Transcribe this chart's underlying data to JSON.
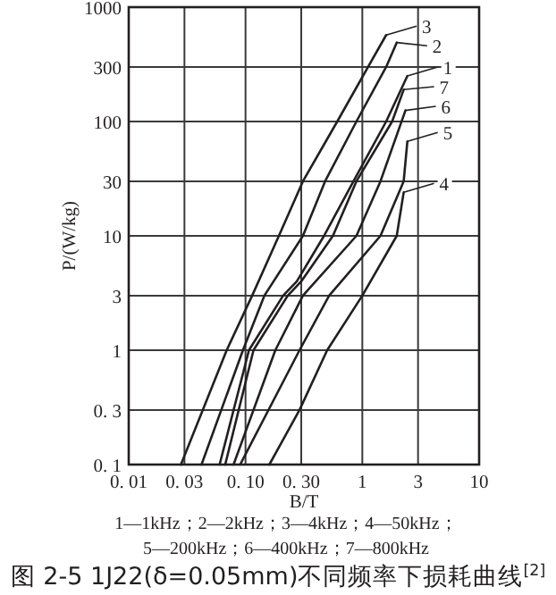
{
  "chart_data": {
    "type": "line",
    "title": "图 2-5 1J22(δ=0.05mm)不同频率下损耗曲线$^{[2]}$",
    "xlabel": "B/T",
    "ylabel": "P/(W/kg)",
    "annotations": [
      "1—1kHz；2—2kHz；3—4kHz；4—50kHz；",
      "5—200kHz；6—400kHz；7—800kHz"
    ],
    "log": "xy",
    "grid": true,
    "legend": "right",
    "xlim": [
      0.01,
      10
    ],
    "ylim": [
      0.1,
      1000
    ],
    "xticks": [
      {
        "value": 0.01,
        "label": "0. 01"
      },
      {
        "value": 0.03,
        "label": "0. 03"
      },
      {
        "value": 0.1,
        "label": "0. 10"
      },
      {
        "value": 0.3,
        "label": "0. 30"
      },
      1,
      3,
      10
    ],
    "yticks": [
      {
        "value": 0.1,
        "label": "0. 1"
      },
      {
        "value": 0.3,
        "label": "0. 3"
      },
      1,
      3,
      10,
      30,
      100,
      300,
      1000
    ],
    "series": [
      {
        "name": "1",
        "color": "#231f20",
        "x": [
          0.06,
          0.107,
          0.21,
          0.275,
          0.47,
          0.84,
          1.6,
          2.43
        ],
        "values": [
          0.1,
          1,
          3,
          4,
          10,
          30,
          100,
          250
        ]
      },
      {
        "name": "2",
        "color": "#231f20",
        "x": [
          0.042,
          0.095,
          0.145,
          0.31,
          0.48,
          0.89,
          1.6,
          1.97
        ],
        "values": [
          0.1,
          1,
          3,
          10,
          30,
          100,
          300,
          490
        ]
      },
      {
        "name": "3",
        "color": "#231f20",
        "x": [
          0.028,
          0.069,
          0.114,
          0.193,
          0.31,
          0.61,
          1.12,
          1.6
        ],
        "values": [
          0.1,
          1,
          3,
          10,
          30,
          100,
          300,
          570
        ]
      },
      {
        "name": "4",
        "color": "#231f20",
        "x": [
          0.16,
          0.29,
          0.5,
          1.0,
          1.97,
          2.26
        ],
        "values": [
          0.1,
          0.3,
          1,
          3,
          10,
          24
        ]
      },
      {
        "name": "5",
        "color": "#231f20",
        "x": [
          0.09,
          0.29,
          0.52,
          1.43,
          2.26,
          2.43
        ],
        "values": [
          0.1,
          1,
          3,
          10,
          30,
          67
        ]
      },
      {
        "name": "6",
        "color": "#231f20",
        "x": [
          0.079,
          0.18,
          0.31,
          0.89,
          1.43,
          2.34
        ],
        "values": [
          0.1,
          1,
          3,
          10,
          30,
          125
        ]
      },
      {
        "name": "7",
        "color": "#231f20",
        "x": [
          0.067,
          0.117,
          0.23,
          0.3,
          0.56,
          0.89,
          1.8,
          2.26
        ],
        "values": [
          0.1,
          1,
          3,
          4,
          10,
          30,
          100,
          190
        ]
      }
    ]
  }
}
